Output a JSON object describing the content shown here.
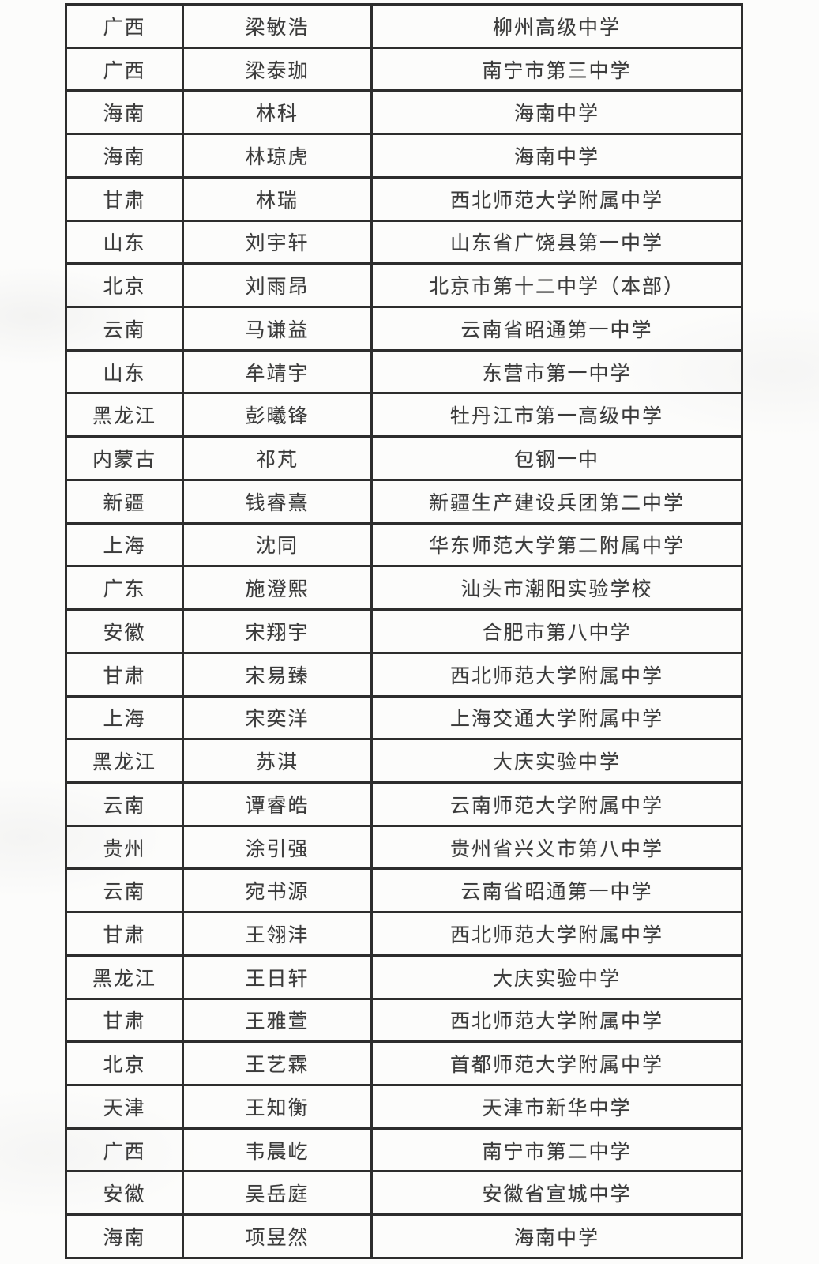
{
  "page": {
    "background_color": "#fcfcfb"
  },
  "table": {
    "border_color": "#2d2d2d",
    "text_color": "#3b3b3b",
    "rows": [
      {
        "province": "广西",
        "name": "梁敏浩",
        "school": "柳州高级中学"
      },
      {
        "province": "广西",
        "name": "梁泰珈",
        "school": "南宁市第三中学"
      },
      {
        "province": "海南",
        "name": "林科",
        "school": "海南中学"
      },
      {
        "province": "海南",
        "name": "林琼虎",
        "school": "海南中学"
      },
      {
        "province": "甘肃",
        "name": "林瑞",
        "school": "西北师范大学附属中学"
      },
      {
        "province": "山东",
        "name": "刘宇轩",
        "school": "山东省广饶县第一中学"
      },
      {
        "province": "北京",
        "name": "刘雨昂",
        "school": "北京市第十二中学（本部）"
      },
      {
        "province": "云南",
        "name": "马谦益",
        "school": "云南省昭通第一中学"
      },
      {
        "province": "山东",
        "name": "牟靖宇",
        "school": "东营市第一中学"
      },
      {
        "province": "黑龙江",
        "name": "彭曦锋",
        "school": "牡丹江市第一高级中学"
      },
      {
        "province": "内蒙古",
        "name": "祁芃",
        "school": "包钢一中"
      },
      {
        "province": "新疆",
        "name": "钱睿熹",
        "school": "新疆生产建设兵团第二中学"
      },
      {
        "province": "上海",
        "name": "沈同",
        "school": "华东师范大学第二附属中学"
      },
      {
        "province": "广东",
        "name": "施澄熙",
        "school": "汕头市潮阳实验学校"
      },
      {
        "province": "安徽",
        "name": "宋翔宇",
        "school": "合肥市第八中学"
      },
      {
        "province": "甘肃",
        "name": "宋易臻",
        "school": "西北师范大学附属中学"
      },
      {
        "province": "上海",
        "name": "宋奕洋",
        "school": "上海交通大学附属中学"
      },
      {
        "province": "黑龙江",
        "name": "苏淇",
        "school": "大庆实验中学"
      },
      {
        "province": "云南",
        "name": "谭睿皓",
        "school": "云南师范大学附属中学"
      },
      {
        "province": "贵州",
        "name": "涂引强",
        "school": "贵州省兴义市第八中学"
      },
      {
        "province": "云南",
        "name": "宛书源",
        "school": "云南省昭通第一中学"
      },
      {
        "province": "甘肃",
        "name": "王翎沣",
        "school": "西北师范大学附属中学"
      },
      {
        "province": "黑龙江",
        "name": "王日轩",
        "school": "大庆实验中学"
      },
      {
        "province": "甘肃",
        "name": "王雅萱",
        "school": "西北师范大学附属中学"
      },
      {
        "province": "北京",
        "name": "王艺霖",
        "school": "首都师范大学附属中学"
      },
      {
        "province": "天津",
        "name": "王知衡",
        "school": "天津市新华中学"
      },
      {
        "province": "广西",
        "name": "韦晨屹",
        "school": "南宁市第二中学"
      },
      {
        "province": "安徽",
        "name": "吴岳庭",
        "school": "安徽省宣城中学"
      },
      {
        "province": "海南",
        "name": "项昱然",
        "school": "海南中学"
      }
    ]
  }
}
